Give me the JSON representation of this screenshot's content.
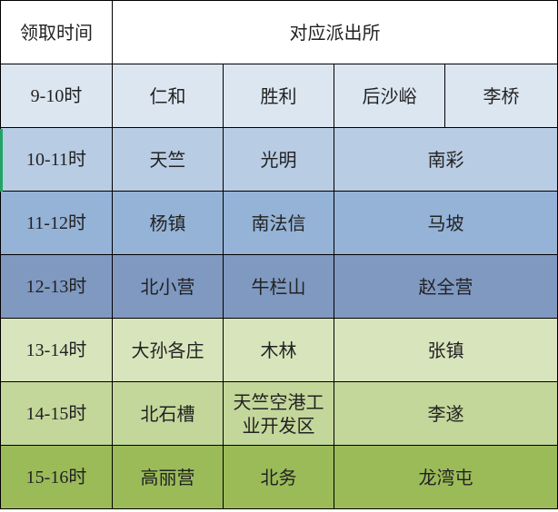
{
  "header": {
    "time": "领取时间",
    "stations": "对应派出所"
  },
  "colors": {
    "selection_marker": "#21a366"
  },
  "rows": [
    {
      "time": "9-10时",
      "stations": [
        "仁和",
        "胜利",
        "后沙峪",
        "李桥"
      ],
      "color": "#dce6f1"
    },
    {
      "time": "10-11时",
      "stations": [
        "天竺",
        "光明",
        "南彩"
      ],
      "color": "#b8cce4"
    },
    {
      "time": "11-12时",
      "stations": [
        "杨镇",
        "南法信",
        "马坡"
      ],
      "color": "#95b3d7"
    },
    {
      "time": "12-13时",
      "stations": [
        "北小营",
        "牛栏山",
        "赵全营"
      ],
      "color": "#8099c1"
    },
    {
      "time": "13-14时",
      "stations": [
        "大孙各庄",
        "木林",
        "张镇"
      ],
      "color": "#d8e4bc"
    },
    {
      "time": "14-15时",
      "stations": [
        "北石槽",
        "天竺空港工业开发区",
        "李遂"
      ],
      "color": "#c4d79b"
    },
    {
      "time": "15-16时",
      "stations": [
        "高丽营",
        "北务",
        "龙湾屯"
      ],
      "color": "#9bbb59"
    }
  ]
}
